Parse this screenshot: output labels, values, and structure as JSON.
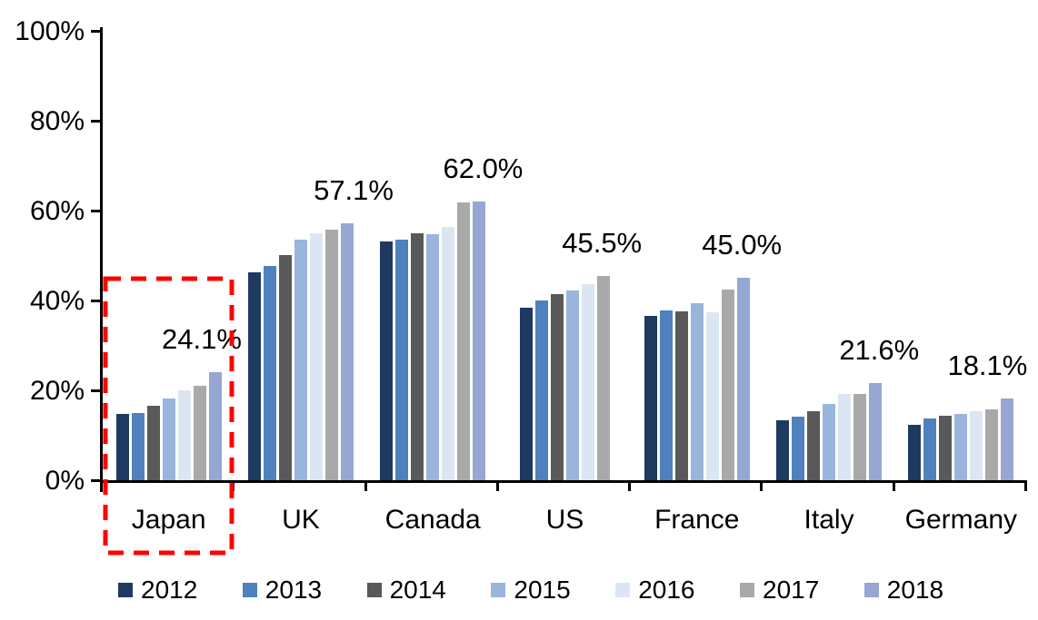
{
  "chart_data": {
    "type": "bar",
    "title": "",
    "xlabel": "",
    "ylabel": "",
    "ylim": [
      0,
      100
    ],
    "y_tick_labels": [
      "0%",
      "20%",
      "40%",
      "60%",
      "80%",
      "100%"
    ],
    "grid": false,
    "legend_position": "bottom",
    "categories": [
      "Japan",
      "UK",
      "Canada",
      "US",
      "France",
      "Italy",
      "Germany"
    ],
    "value_labels": [
      "24.1%",
      "57.1%",
      "62.0%",
      "45.5%",
      "45.0%",
      "21.6%",
      "18.1%"
    ],
    "series": [
      {
        "name": "2012",
        "color": "#1F3A60",
        "values": [
          14.8,
          46.3,
          53.1,
          38.3,
          36.6,
          13.3,
          12.4
        ]
      },
      {
        "name": "2013",
        "color": "#4E81BD",
        "values": [
          15.0,
          47.7,
          53.5,
          40.1,
          37.7,
          14.1,
          13.8
        ]
      },
      {
        "name": "2014",
        "color": "#595959",
        "values": [
          16.5,
          50.1,
          55.0,
          41.5,
          37.6,
          15.3,
          14.3
        ]
      },
      {
        "name": "2015",
        "color": "#9AB5DC",
        "values": [
          18.1,
          53.5,
          54.8,
          42.2,
          39.3,
          17.0,
          14.8
        ]
      },
      {
        "name": "2016",
        "color": "#DCE6F2",
        "values": [
          19.9,
          54.9,
          56.3,
          43.7,
          37.4,
          19.1,
          15.3
        ]
      },
      {
        "name": "2017",
        "color": "#A9A9A9",
        "values": [
          21.0,
          55.8,
          61.8,
          45.5,
          42.4,
          19.2,
          15.7
        ]
      },
      {
        "name": "2018",
        "color": "#95A7D2",
        "values": [
          24.1,
          57.1,
          62.0,
          null,
          45.0,
          21.6,
          18.1
        ]
      }
    ],
    "annotations": {
      "highlight_box": {
        "category": "Japan",
        "style": "dashed",
        "color": "#FF0000"
      }
    }
  }
}
